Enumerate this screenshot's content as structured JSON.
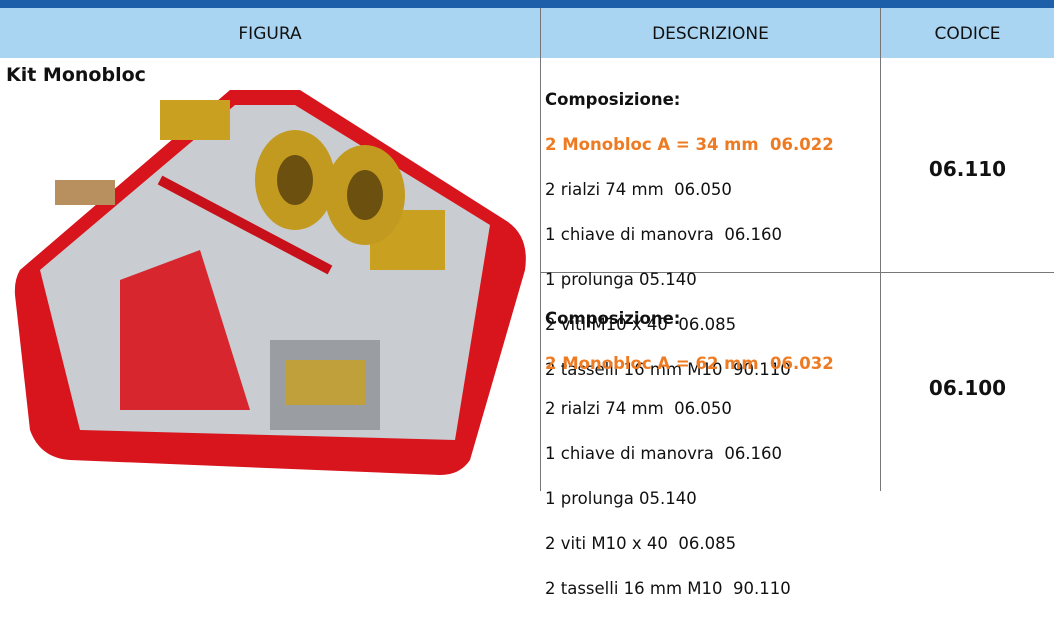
{
  "header": {
    "columns": [
      "FIGURA",
      "DESCRIZIONE",
      "CODICE"
    ]
  },
  "table": {
    "title": "Kit Monobloc",
    "rows": [
      {
        "heading": "Composizione:",
        "highlight": "2 Monobloc A = 34 mm  06.022",
        "lines": [
          "2 rialzi 74 mm  06.050",
          "1 chiave di manovra  06.160",
          "1 prolunga 05.140",
          "2 viti M10 x 40  06.085",
          "2 tasselli 16 mm M10  90.110"
        ],
        "code": "06.110"
      },
      {
        "heading": "Composizione:",
        "highlight": "2 Monobloc A = 62 mm  06.032",
        "lines": [
          "2 rialzi 74 mm  06.050",
          "1 chiave di manovra  06.160",
          "1 prolunga 05.140",
          "2 viti M10 x 40  06.085",
          "2 tasselli 16 mm M10  90.110"
        ],
        "code": "06.100"
      }
    ]
  }
}
